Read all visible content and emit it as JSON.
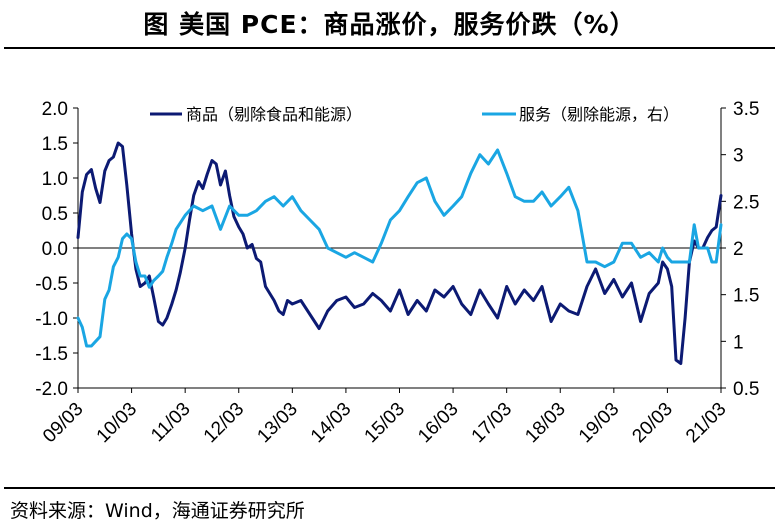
{
  "title": "图  美国 PCE：商品涨价，服务价跌（%）",
  "source": "资料来源：Wind，海通证券研究所",
  "colors": {
    "goods": "#0c1a73",
    "services": "#1aa6e3",
    "axis": "#000000"
  },
  "chart_data": {
    "type": "line",
    "title": "美国 PCE：商品涨价，服务价跌（%）",
    "x_tick_labels": [
      "09/03",
      "10/03",
      "11/03",
      "12/03",
      "13/03",
      "14/03",
      "15/03",
      "16/03",
      "17/03",
      "18/03",
      "19/03",
      "20/03",
      "21/03"
    ],
    "x_start": 2009.17,
    "x_end": 2021.17,
    "y_left": {
      "min": -2.0,
      "max": 2.0,
      "ticks": [
        "-2.0",
        "-1.5",
        "-1.0",
        "-0.5",
        "0.0",
        "0.5",
        "1.0",
        "1.5",
        "2.0"
      ]
    },
    "y_right": {
      "min": 0.5,
      "max": 3.5,
      "ticks": [
        "0.5",
        "1",
        "1.5",
        "2",
        "2.5",
        "3",
        "3.5"
      ]
    },
    "zero_line": 0.0,
    "legend": "top",
    "series": [
      {
        "name": "商品（剔除食品和能源）",
        "axis": "left",
        "x": [
          2009.17,
          2009.25,
          2009.33,
          2009.42,
          2009.5,
          2009.58,
          2009.67,
          2009.75,
          2009.83,
          2009.92,
          2010.0,
          2010.08,
          2010.17,
          2010.25,
          2010.33,
          2010.42,
          2010.5,
          2010.58,
          2010.67,
          2010.75,
          2010.83,
          2010.92,
          2011.0,
          2011.08,
          2011.17,
          2011.25,
          2011.33,
          2011.42,
          2011.5,
          2011.58,
          2011.67,
          2011.75,
          2011.83,
          2011.92,
          2012.0,
          2012.08,
          2012.17,
          2012.25,
          2012.33,
          2012.42,
          2012.5,
          2012.58,
          2012.67,
          2012.75,
          2012.83,
          2012.92,
          2013.0,
          2013.08,
          2013.17,
          2013.33,
          2013.5,
          2013.67,
          2013.83,
          2014.0,
          2014.17,
          2014.33,
          2014.5,
          2014.67,
          2014.83,
          2015.0,
          2015.17,
          2015.33,
          2015.5,
          2015.67,
          2015.83,
          2016.0,
          2016.17,
          2016.33,
          2016.5,
          2016.67,
          2016.83,
          2017.0,
          2017.17,
          2017.33,
          2017.5,
          2017.67,
          2017.83,
          2018.0,
          2018.17,
          2018.33,
          2018.5,
          2018.67,
          2018.83,
          2019.0,
          2019.17,
          2019.33,
          2019.5,
          2019.67,
          2019.83,
          2020.0,
          2020.08,
          2020.17,
          2020.25,
          2020.33,
          2020.42,
          2020.5,
          2020.58,
          2020.67,
          2020.75,
          2020.83,
          2020.92,
          2021.0,
          2021.08,
          2021.17
        ],
        "values": [
          0.15,
          0.8,
          1.05,
          1.12,
          0.85,
          0.65,
          1.1,
          1.25,
          1.3,
          1.5,
          1.45,
          0.9,
          0.2,
          -0.3,
          -0.55,
          -0.5,
          -0.4,
          -0.7,
          -1.05,
          -1.1,
          -1.0,
          -0.8,
          -0.6,
          -0.35,
          0.0,
          0.4,
          0.75,
          0.95,
          0.85,
          1.05,
          1.25,
          1.2,
          0.9,
          1.1,
          0.75,
          0.45,
          0.3,
          0.2,
          0.0,
          0.05,
          -0.15,
          -0.2,
          -0.55,
          -0.65,
          -0.75,
          -0.9,
          -0.95,
          -0.75,
          -0.8,
          -0.75,
          -0.95,
          -1.15,
          -0.9,
          -0.75,
          -0.7,
          -0.85,
          -0.8,
          -0.65,
          -0.75,
          -0.9,
          -0.6,
          -0.95,
          -0.75,
          -0.9,
          -0.6,
          -0.7,
          -0.55,
          -0.8,
          -0.95,
          -0.6,
          -0.8,
          -1.0,
          -0.55,
          -0.8,
          -0.6,
          -0.75,
          -0.55,
          -1.05,
          -0.8,
          -0.9,
          -0.95,
          -0.55,
          -0.3,
          -0.65,
          -0.45,
          -0.7,
          -0.5,
          -1.05,
          -0.65,
          -0.5,
          -0.2,
          -0.3,
          -0.55,
          -1.6,
          -1.65,
          -1.0,
          -0.2,
          0.1,
          0.0,
          0.0,
          0.15,
          0.25,
          0.3,
          0.75
        ]
      },
      {
        "name": "服务（剔除能源，右）",
        "axis": "right",
        "x": [
          2009.17,
          2009.25,
          2009.33,
          2009.42,
          2009.5,
          2009.58,
          2009.67,
          2009.75,
          2009.83,
          2009.92,
          2010.0,
          2010.08,
          2010.17,
          2010.25,
          2010.33,
          2010.42,
          2010.5,
          2010.58,
          2010.67,
          2010.75,
          2010.83,
          2010.92,
          2011.0,
          2011.17,
          2011.33,
          2011.5,
          2011.67,
          2011.83,
          2012.0,
          2012.17,
          2012.33,
          2012.5,
          2012.67,
          2012.83,
          2013.0,
          2013.17,
          2013.33,
          2013.5,
          2013.67,
          2013.83,
          2014.0,
          2014.17,
          2014.33,
          2014.5,
          2014.67,
          2014.83,
          2015.0,
          2015.17,
          2015.33,
          2015.5,
          2015.67,
          2015.83,
          2016.0,
          2016.17,
          2016.33,
          2016.5,
          2016.67,
          2016.83,
          2017.0,
          2017.17,
          2017.33,
          2017.5,
          2017.67,
          2017.83,
          2018.0,
          2018.17,
          2018.33,
          2018.5,
          2018.67,
          2018.83,
          2019.0,
          2019.17,
          2019.33,
          2019.5,
          2019.67,
          2019.83,
          2020.0,
          2020.08,
          2020.17,
          2020.25,
          2020.33,
          2020.42,
          2020.5,
          2020.58,
          2020.67,
          2020.75,
          2020.83,
          2020.92,
          2021.0,
          2021.08,
          2021.17
        ],
        "values": [
          1.25,
          1.15,
          0.95,
          0.95,
          1.0,
          1.05,
          1.45,
          1.55,
          1.8,
          1.9,
          2.1,
          2.15,
          2.1,
          1.85,
          1.7,
          1.7,
          1.58,
          1.65,
          1.7,
          1.75,
          1.9,
          2.05,
          2.2,
          2.35,
          2.45,
          2.4,
          2.45,
          2.2,
          2.45,
          2.35,
          2.35,
          2.4,
          2.5,
          2.55,
          2.45,
          2.55,
          2.4,
          2.3,
          2.2,
          2.0,
          1.95,
          1.9,
          1.95,
          1.9,
          1.85,
          2.05,
          2.3,
          2.4,
          2.55,
          2.7,
          2.75,
          2.5,
          2.35,
          2.45,
          2.55,
          2.8,
          3.0,
          2.9,
          3.05,
          2.8,
          2.55,
          2.5,
          2.5,
          2.6,
          2.45,
          2.55,
          2.65,
          2.4,
          1.85,
          1.85,
          1.8,
          1.85,
          2.05,
          2.05,
          1.9,
          1.95,
          1.85,
          2.0,
          1.9,
          1.85,
          1.85,
          1.85,
          1.85,
          1.85,
          2.25,
          2.0,
          2.0,
          2.0,
          1.85,
          1.85,
          2.25
        ]
      }
    ]
  }
}
